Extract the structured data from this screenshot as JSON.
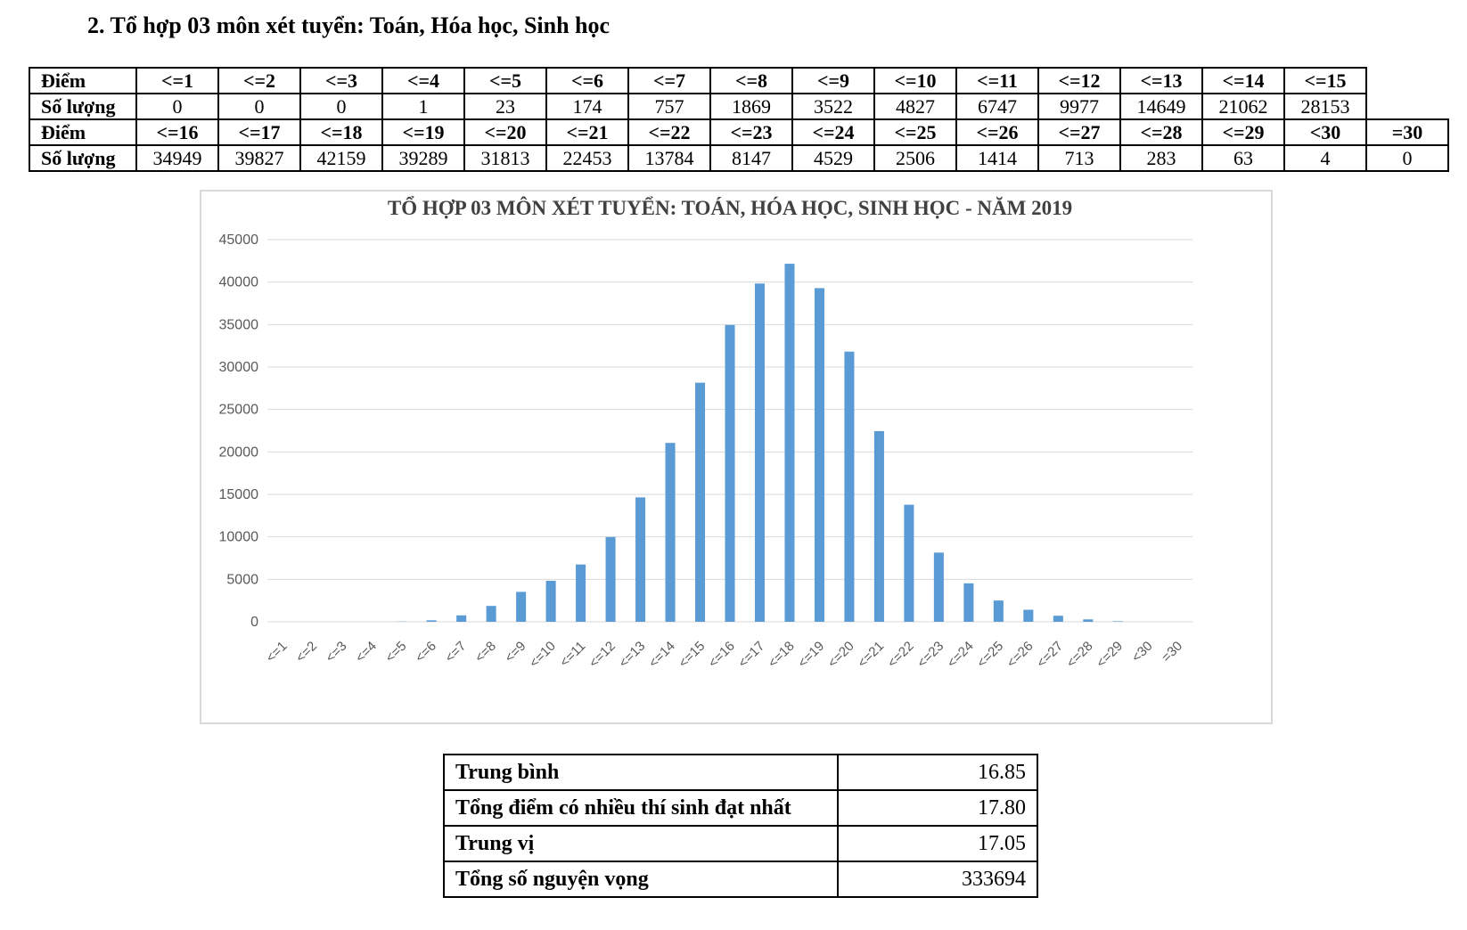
{
  "heading": "2. Tổ hợp 03 môn xét tuyển: Toán, Hóa học, Sinh học",
  "table": {
    "label_score": "Điểm",
    "label_count": "Số lượng",
    "rows": [
      {
        "scores": [
          "<=1",
          "<=2",
          "<=3",
          "<=4",
          "<=5",
          "<=6",
          "<=7",
          "<=8",
          "<=9",
          "<=10",
          "<=11",
          "<=12",
          "<=13",
          "<=14",
          "<=15"
        ],
        "counts": [
          "0",
          "0",
          "0",
          "1",
          "23",
          "174",
          "757",
          "1869",
          "3522",
          "4827",
          "6747",
          "9977",
          "14649",
          "21062",
          "28153"
        ]
      },
      {
        "scores": [
          "<=16",
          "<=17",
          "<=18",
          "<=19",
          "<=20",
          "<=21",
          "<=22",
          "<=23",
          "<=24",
          "<=25",
          "<=26",
          "<=27",
          "<=28",
          "<=29",
          "<30",
          "=30"
        ],
        "counts": [
          "34949",
          "39827",
          "42159",
          "39289",
          "31813",
          "22453",
          "13784",
          "8147",
          "4529",
          "2506",
          "1414",
          "713",
          "283",
          "63",
          "4",
          "0"
        ]
      }
    ]
  },
  "chart_data": {
    "type": "bar",
    "title": "TỔ HỢP 03 MÔN XÉT TUYỂN: TOÁN, HÓA HỌC, SINH HỌC - NĂM 2019",
    "categories": [
      "<=1",
      "<=2",
      "<=3",
      "<=4",
      "<=5",
      "<=6",
      "<=7",
      "<=8",
      "<=9",
      "<=10",
      "<=11",
      "<=12",
      "<=13",
      "<=14",
      "<=15",
      "<=16",
      "<=17",
      "<=18",
      "<=19",
      "<=20",
      "<=21",
      "<=22",
      "<=23",
      "<=24",
      "<=25",
      "<=26",
      "<=27",
      "<=28",
      "<=29",
      "<30",
      "=30"
    ],
    "values": [
      0,
      0,
      0,
      1,
      23,
      174,
      757,
      1869,
      3522,
      4827,
      6747,
      9977,
      14649,
      21062,
      28153,
      34949,
      39827,
      42159,
      39289,
      31813,
      22453,
      13784,
      8147,
      4529,
      2506,
      1414,
      713,
      283,
      63,
      4,
      0
    ],
    "ylim": [
      0,
      45000
    ],
    "yticks": [
      0,
      5000,
      10000,
      15000,
      20000,
      25000,
      30000,
      35000,
      40000,
      45000
    ],
    "xlabel": "",
    "ylabel": "",
    "grid": true,
    "legend": "none",
    "bar_color": "#5b9bd5",
    "grid_color": "#d9d9d9"
  },
  "stats": [
    {
      "label": "Trung bình",
      "value": "16.85"
    },
    {
      "label": "Tổng điểm có nhiều thí sinh đạt nhất",
      "value": "17.80"
    },
    {
      "label": "Trung vị",
      "value": "17.05"
    },
    {
      "label": "Tổng số nguyện vọng",
      "value": "333694"
    }
  ]
}
